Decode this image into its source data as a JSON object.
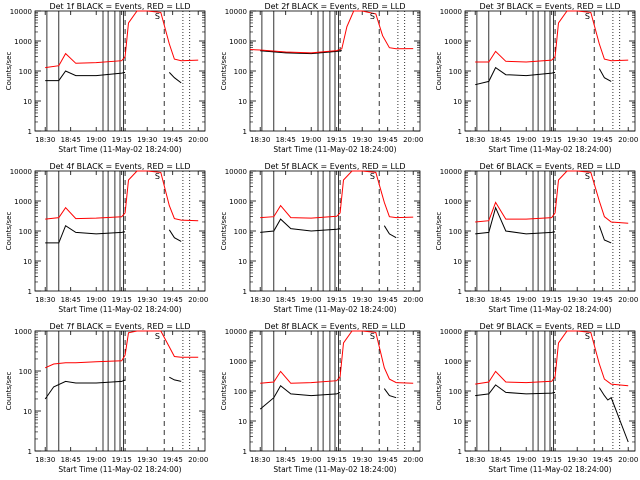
{
  "chart_data": [
    {
      "type": "line",
      "title": "Det 1f BLACK = Events, RED = LLD",
      "xlabel": "Start Time (11-May-02 18:24:00)",
      "ylabel": "Counts/sec",
      "yscale": "log",
      "ylim": [
        1,
        10000
      ],
      "xticks": [
        "18:30",
        "18:45",
        "19:00",
        "19:15",
        "19:30",
        "19:45",
        "20:00"
      ],
      "yticks": [
        "1",
        "10",
        "100",
        "1000",
        "10000"
      ],
      "annotation": "S",
      "series": [
        {
          "name": "Events",
          "color": "#000000",
          "x": [
            "18:30",
            "18:38",
            "18:42",
            "18:48",
            "19:00",
            "19:15",
            "19:17",
            "19:19",
            "19:24",
            "19:30",
            "19:38",
            "19:43",
            "19:46",
            "19:50"
          ],
          "y": [
            48,
            48,
            100,
            70,
            70,
            85,
            90,
            null,
            null,
            null,
            null,
            90,
            60,
            40
          ]
        },
        {
          "name": "LLD",
          "color": "#ff0000",
          "x": [
            "18:30",
            "18:38",
            "18:42",
            "18:48",
            "19:00",
            "19:15",
            "19:17",
            "19:19",
            "19:24",
            "19:30",
            "19:38",
            "19:43",
            "19:46",
            "19:50",
            "20:00"
          ],
          "y": [
            130,
            150,
            380,
            180,
            190,
            220,
            300,
            4000,
            10000,
            10000,
            9000,
            800,
            250,
            220,
            230
          ]
        }
      ],
      "vlines_solid": [
        "18:31",
        "18:38",
        "19:04",
        "19:07",
        "19:11",
        "19:14",
        "19:16"
      ],
      "vlines_dashed": [
        "19:17",
        "19:40"
      ],
      "vlines_dotted": [
        "19:51",
        "19:55"
      ]
    },
    {
      "type": "line",
      "title": "Det 2f BLACK = Events, RED = LLD",
      "xlabel": "Start Time (11-May-02 18:24:00)",
      "ylabel": "Counts/sec",
      "yscale": "log",
      "ylim": [
        1,
        10000
      ],
      "xticks": [
        "18:30",
        "18:45",
        "19:00",
        "19:15",
        "19:30",
        "19:45",
        "20:00"
      ],
      "yticks": [
        "1",
        "10",
        "100",
        "1000",
        "10000"
      ],
      "annotation": "S",
      "series": [
        {
          "name": "Events",
          "color": "#000000",
          "x": [
            "18:30",
            "18:45",
            "19:00",
            "19:15",
            "19:18"
          ],
          "y": [
            470,
            400,
            380,
            450,
            480
          ]
        },
        {
          "name": "LLD",
          "color": "#ff0000",
          "x": [
            "18:24",
            "18:30",
            "18:45",
            "19:00",
            "19:15",
            "19:18",
            "19:21",
            "19:25",
            "19:30",
            "19:38",
            "19:42",
            "19:46",
            "19:50",
            "20:00"
          ],
          "y": [
            520,
            500,
            430,
            400,
            480,
            550,
            3000,
            10000,
            10000,
            8000,
            1500,
            600,
            550,
            560
          ]
        }
      ],
      "vlines_solid": [
        "18:31",
        "18:38",
        "19:04",
        "19:07",
        "19:11",
        "19:14",
        "19:16"
      ],
      "vlines_dashed": [
        "19:17",
        "19:40"
      ],
      "vlines_dotted": [
        "19:51",
        "19:55"
      ]
    },
    {
      "type": "line",
      "title": "Det 3f BLACK = Events, RED = LLD",
      "xlabel": "Start Time (11-May-02 18:24:00)",
      "ylabel": "Counts/sec",
      "yscale": "log",
      "ylim": [
        1,
        10000
      ],
      "xticks": [
        "18:30",
        "18:45",
        "19:00",
        "19:15",
        "19:30",
        "19:45",
        "20:00"
      ],
      "yticks": [
        "1",
        "10",
        "100",
        "1000",
        "10000"
      ],
      "annotation": "S",
      "series": [
        {
          "name": "Events",
          "color": "#000000",
          "x": [
            "18:30",
            "18:38",
            "18:42",
            "18:48",
            "19:00",
            "19:15",
            "19:17",
            "19:19",
            "19:24",
            "19:30",
            "19:38",
            "19:43",
            "19:46",
            "19:50"
          ],
          "y": [
            35,
            45,
            130,
            75,
            70,
            85,
            90,
            null,
            null,
            null,
            null,
            120,
            60,
            45
          ]
        },
        {
          "name": "LLD",
          "color": "#ff0000",
          "x": [
            "18:30",
            "18:38",
            "18:42",
            "18:48",
            "19:00",
            "19:15",
            "19:17",
            "19:19",
            "19:24",
            "19:30",
            "19:38",
            "19:43",
            "19:46",
            "19:50",
            "20:00"
          ],
          "y": [
            200,
            200,
            450,
            210,
            200,
            230,
            300,
            4000,
            10000,
            10000,
            9000,
            800,
            250,
            220,
            230
          ]
        }
      ],
      "vlines_solid": [
        "18:31",
        "18:38",
        "19:04",
        "19:07",
        "19:11",
        "19:14",
        "19:16"
      ],
      "vlines_dashed": [
        "19:17",
        "19:40"
      ],
      "vlines_dotted": [
        "19:51",
        "19:55"
      ]
    },
    {
      "type": "line",
      "title": "Det 4f BLACK = Events, RED = LLD",
      "xlabel": "Start Time (11-May-02 18:24:00)",
      "ylabel": "Counts/sec",
      "yscale": "log",
      "ylim": [
        1,
        10000
      ],
      "xticks": [
        "18:30",
        "18:45",
        "19:00",
        "19:15",
        "19:30",
        "19:45",
        "20:00"
      ],
      "yticks": [
        "1",
        "10",
        "100",
        "1000",
        "10000"
      ],
      "annotation": "S",
      "series": [
        {
          "name": "Events",
          "color": "#000000",
          "x": [
            "18:30",
            "18:38",
            "18:42",
            "18:48",
            "19:00",
            "19:15",
            "19:17",
            "19:19",
            "19:24",
            "19:30",
            "19:38",
            "19:43",
            "19:46",
            "19:50"
          ],
          "y": [
            40,
            40,
            150,
            90,
            80,
            90,
            95,
            null,
            null,
            null,
            null,
            110,
            60,
            45
          ]
        },
        {
          "name": "LLD",
          "color": "#ff0000",
          "x": [
            "18:30",
            "18:38",
            "18:42",
            "18:48",
            "19:00",
            "19:15",
            "19:17",
            "19:19",
            "19:24",
            "19:30",
            "19:38",
            "19:43",
            "19:46",
            "19:50",
            "20:00"
          ],
          "y": [
            250,
            280,
            600,
            260,
            270,
            300,
            400,
            5000,
            10000,
            10000,
            9000,
            700,
            260,
            230,
            220
          ]
        }
      ],
      "vlines_solid": [
        "18:31",
        "18:38",
        "19:04",
        "19:07",
        "19:11",
        "19:14",
        "19:16"
      ],
      "vlines_dashed": [
        "19:17",
        "19:40"
      ],
      "vlines_dotted": [
        "19:51",
        "19:55"
      ]
    },
    {
      "type": "line",
      "title": "Det 5f BLACK = Events, RED = LLD",
      "xlabel": "Start Time (11-May-02 18:24:00)",
      "ylabel": "Counts/sec",
      "yscale": "log",
      "ylim": [
        1,
        10000
      ],
      "xticks": [
        "18:30",
        "18:45",
        "19:00",
        "19:15",
        "19:30",
        "19:45",
        "20:00"
      ],
      "yticks": [
        "1",
        "10",
        "100",
        "1000",
        "10000"
      ],
      "annotation": "S",
      "series": [
        {
          "name": "Events",
          "color": "#000000",
          "x": [
            "18:30",
            "18:38",
            "18:42",
            "18:48",
            "19:00",
            "19:15",
            "19:17",
            "19:19",
            "19:24",
            "19:30",
            "19:38",
            "19:43",
            "19:46",
            "19:50"
          ],
          "y": [
            90,
            100,
            250,
            120,
            100,
            115,
            120,
            null,
            null,
            null,
            null,
            150,
            80,
            60
          ]
        },
        {
          "name": "LLD",
          "color": "#ff0000",
          "x": [
            "18:30",
            "18:38",
            "18:42",
            "18:48",
            "19:00",
            "19:15",
            "19:17",
            "19:19",
            "19:24",
            "19:30",
            "19:38",
            "19:43",
            "19:46",
            "19:50",
            "20:00"
          ],
          "y": [
            280,
            300,
            700,
            280,
            270,
            310,
            400,
            5000,
            10000,
            10000,
            9000,
            900,
            300,
            280,
            290
          ]
        }
      ],
      "vlines_solid": [
        "18:31",
        "18:38",
        "19:04",
        "19:07",
        "19:11",
        "19:14",
        "19:16"
      ],
      "vlines_dashed": [
        "19:17",
        "19:40"
      ],
      "vlines_dotted": [
        "19:51",
        "19:55"
      ]
    },
    {
      "type": "line",
      "title": "Det 6f BLACK = Events, RED = LLD",
      "xlabel": "Start Time (11-May-02 18:24:00)",
      "ylabel": "Counts/sec",
      "yscale": "log",
      "ylim": [
        1,
        10000
      ],
      "xticks": [
        "18:30",
        "18:45",
        "19:00",
        "19:15",
        "19:30",
        "19:45",
        "20:00"
      ],
      "yticks": [
        "1",
        "10",
        "100",
        "1000",
        "10000"
      ],
      "annotation": "S",
      "series": [
        {
          "name": "Events",
          "color": "#000000",
          "x": [
            "18:30",
            "18:38",
            "18:42",
            "18:48",
            "19:00",
            "19:15",
            "19:17",
            "19:19",
            "19:24",
            "19:30",
            "19:38",
            "19:43",
            "19:46",
            "19:50"
          ],
          "y": [
            80,
            90,
            600,
            100,
            80,
            90,
            95,
            null,
            null,
            null,
            null,
            150,
            50,
            40
          ]
        },
        {
          "name": "LLD",
          "color": "#ff0000",
          "x": [
            "18:30",
            "18:38",
            "18:42",
            "18:48",
            "19:00",
            "19:15",
            "19:17",
            "19:19",
            "19:24",
            "19:30",
            "19:38",
            "19:43",
            "19:46",
            "19:50",
            "20:00"
          ],
          "y": [
            200,
            220,
            900,
            250,
            250,
            280,
            400,
            5000,
            10000,
            10000,
            9000,
            1000,
            300,
            200,
            180
          ]
        }
      ],
      "vlines_solid": [
        "18:31",
        "18:38",
        "19:04",
        "19:07",
        "19:11",
        "19:14",
        "19:16"
      ],
      "vlines_dashed": [
        "19:17",
        "19:40"
      ],
      "vlines_dotted": [
        "19:51",
        "19:55"
      ]
    },
    {
      "type": "line",
      "title": "Det 7f BLACK = Events, RED = LLD",
      "xlabel": "Start Time (11-May-02 18:24:00)",
      "ylabel": "Counts/sec",
      "yscale": "log",
      "ylim": [
        1,
        1000
      ],
      "xticks": [
        "18:30",
        "18:45",
        "19:00",
        "19:15",
        "19:30",
        "19:45",
        "20:00"
      ],
      "yticks": [
        "1",
        "10",
        "100",
        "1000"
      ],
      "annotation": "S",
      "series": [
        {
          "name": "Events",
          "color": "#000000",
          "x": [
            "18:30",
            "18:35",
            "18:42",
            "18:48",
            "19:00",
            "19:15",
            "19:17",
            "19:19",
            "19:24",
            "19:30",
            "19:38",
            "19:43",
            "19:46",
            "19:50"
          ],
          "y": [
            20,
            40,
            55,
            50,
            50,
            55,
            60,
            null,
            null,
            null,
            null,
            70,
            60,
            55
          ]
        },
        {
          "name": "LLD",
          "color": "#ff0000",
          "x": [
            "18:30",
            "18:35",
            "18:42",
            "18:48",
            "19:00",
            "19:15",
            "19:17",
            "19:19",
            "19:24",
            "19:30",
            "19:38",
            "19:43",
            "19:46",
            "19:50",
            "20:00"
          ],
          "y": [
            120,
            150,
            160,
            160,
            170,
            180,
            250,
            900,
            1000,
            1000,
            1000,
            400,
            230,
            220,
            220
          ]
        }
      ],
      "vlines_solid": [
        "18:31",
        "18:38",
        "19:04",
        "19:07",
        "19:11",
        "19:14",
        "19:16"
      ],
      "vlines_dashed": [
        "19:17",
        "19:40"
      ],
      "vlines_dotted": [
        "19:51",
        "19:55"
      ]
    },
    {
      "type": "line",
      "title": "Det 8f BLACK = Events, RED = LLD",
      "xlabel": "Start Time (11-May-02 18:24:00)",
      "ylabel": "Counts/sec",
      "yscale": "log",
      "ylim": [
        1,
        10000
      ],
      "xticks": [
        "18:30",
        "18:45",
        "19:00",
        "19:15",
        "19:30",
        "19:45",
        "20:00"
      ],
      "yticks": [
        "1",
        "10",
        "100",
        "1000",
        "10000"
      ],
      "annotation": "S",
      "series": [
        {
          "name": "Events",
          "color": "#000000",
          "x": [
            "18:30",
            "18:38",
            "18:42",
            "18:48",
            "19:00",
            "19:15",
            "19:17",
            "19:19",
            "19:24",
            "19:30",
            "19:38",
            "19:43",
            "19:46",
            "19:50"
          ],
          "y": [
            25,
            60,
            150,
            80,
            70,
            80,
            90,
            null,
            null,
            null,
            null,
            120,
            70,
            60
          ]
        },
        {
          "name": "LLD",
          "color": "#ff0000",
          "x": [
            "18:30",
            "18:38",
            "18:42",
            "18:48",
            "19:00",
            "19:15",
            "19:17",
            "19:19",
            "19:24",
            "19:30",
            "19:38",
            "19:43",
            "19:46",
            "19:50",
            "20:00"
          ],
          "y": [
            180,
            200,
            450,
            180,
            190,
            220,
            300,
            4000,
            10000,
            10000,
            9000,
            600,
            250,
            190,
            180
          ]
        }
      ],
      "vlines_solid": [
        "18:31",
        "18:38",
        "19:04",
        "19:07",
        "19:11",
        "19:14",
        "19:16"
      ],
      "vlines_dashed": [
        "19:17",
        "19:40"
      ],
      "vlines_dotted": [
        "19:51",
        "19:55"
      ]
    },
    {
      "type": "line",
      "title": "Det 9f BLACK = Events, RED = LLD",
      "xlabel": "Start Time (11-May-02 18:24:00)",
      "ylabel": "Counts/sec",
      "yscale": "log",
      "ylim": [
        1,
        10000
      ],
      "xticks": [
        "18:30",
        "18:45",
        "19:00",
        "19:15",
        "19:30",
        "19:45",
        "20:00"
      ],
      "yticks": [
        "1",
        "10",
        "100",
        "1000",
        "10000"
      ],
      "annotation": "S",
      "series": [
        {
          "name": "Events",
          "color": "#000000",
          "x": [
            "18:30",
            "18:38",
            "18:42",
            "18:48",
            "19:00",
            "19:15",
            "19:17",
            "19:19",
            "19:24",
            "19:30",
            "19:38",
            "19:43",
            "19:46",
            "19:48",
            "19:50",
            "20:00"
          ],
          "y": [
            70,
            80,
            160,
            90,
            80,
            85,
            90,
            null,
            null,
            null,
            null,
            130,
            70,
            50,
            60,
            2
          ]
        },
        {
          "name": "LLD",
          "color": "#ff0000",
          "x": [
            "18:30",
            "18:38",
            "18:42",
            "18:48",
            "19:00",
            "19:15",
            "19:17",
            "19:19",
            "19:24",
            "19:30",
            "19:38",
            "19:43",
            "19:46",
            "19:50",
            "20:00"
          ],
          "y": [
            170,
            200,
            450,
            200,
            190,
            210,
            300,
            4000,
            10000,
            10000,
            9000,
            800,
            250,
            170,
            150
          ]
        }
      ],
      "vlines_solid": [
        "18:31",
        "18:38",
        "19:04",
        "19:07",
        "19:11",
        "19:14",
        "19:16"
      ],
      "vlines_dashed": [
        "19:17",
        "19:40"
      ],
      "vlines_dotted": [
        "19:51",
        "19:55"
      ]
    }
  ]
}
